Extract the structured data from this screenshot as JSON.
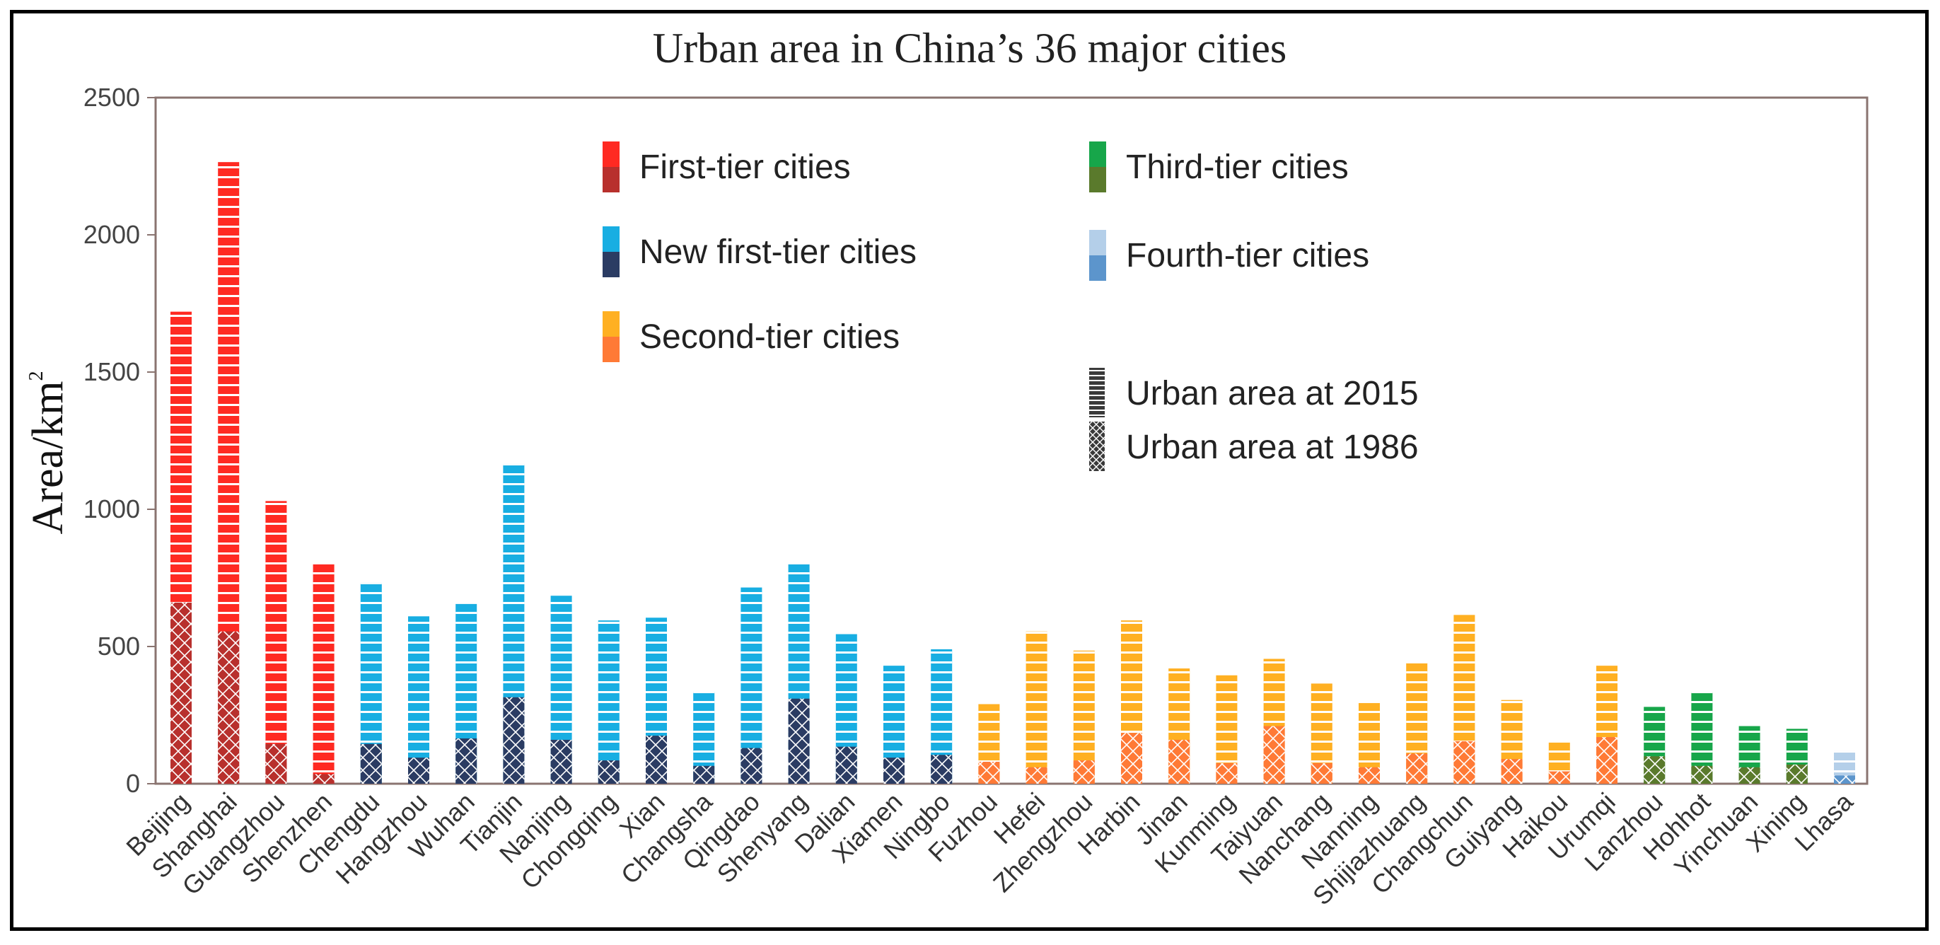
{
  "chart_data": {
    "type": "bar",
    "title": "Urban area in China’s 36 major cities",
    "ylabel": "Area/km",
    "ylabel_superscript": "2",
    "xlabel": "",
    "ylim": [
      0,
      2500
    ],
    "yticks": [
      "0",
      "500",
      "1000",
      "1500",
      "2000",
      "2500"
    ],
    "grid": false,
    "categories": [
      "Beijing",
      "Shanghai",
      "Guangzhou",
      "Shenzhen",
      "Chengdu",
      "Hangzhou",
      "Wuhan",
      "Tianjin",
      "Nanjing",
      "Chongqing",
      "Xian",
      "Changsha",
      "Qingdao",
      "Shenyang",
      "Dalian",
      "Xiamen",
      "Ningbo",
      "Fuzhou",
      "Hefei",
      "Zhengzhou",
      "Harbin",
      "Jinan",
      "Kunming",
      "Taiyuan",
      "Nanchang",
      "Nanning",
      "Shijiazhuang",
      "Changchun",
      "Guiyang",
      "Haikou",
      "Urumqi",
      "Lanzhou",
      "Hohhot",
      "Yinchuan",
      "Xining",
      "Lhasa"
    ],
    "tiers": [
      "first",
      "first",
      "first",
      "first",
      "newfirst",
      "newfirst",
      "newfirst",
      "newfirst",
      "newfirst",
      "newfirst",
      "newfirst",
      "newfirst",
      "newfirst",
      "newfirst",
      "newfirst",
      "newfirst",
      "newfirst",
      "second",
      "second",
      "second",
      "second",
      "second",
      "second",
      "second",
      "second",
      "second",
      "second",
      "second",
      "second",
      "second",
      "second",
      "third",
      "third",
      "third",
      "third",
      "fourth"
    ],
    "series": [
      {
        "name": "Urban area at 2015",
        "values": [
          1720,
          2265,
          1030,
          800,
          730,
          610,
          655,
          1165,
          685,
          595,
          605,
          335,
          715,
          800,
          545,
          430,
          490,
          290,
          555,
          485,
          595,
          420,
          395,
          455,
          365,
          295,
          440,
          615,
          305,
          150,
          430,
          280,
          335,
          210,
          200,
          120
        ]
      },
      {
        "name": "Urban area at 1986",
        "values": [
          660,
          555,
          145,
          35,
          145,
          95,
          165,
          315,
          160,
          85,
          175,
          65,
          130,
          310,
          135,
          95,
          105,
          80,
          60,
          85,
          185,
          160,
          75,
          210,
          75,
          60,
          110,
          155,
          90,
          45,
          170,
          100,
          65,
          60,
          70,
          30
        ]
      }
    ],
    "tier_colors": {
      "first": {
        "2015": "#ff2a22",
        "1986": "#b8302d"
      },
      "newfirst": {
        "2015": "#18aee2",
        "1986": "#2b3c63"
      },
      "second": {
        "2015": "#ffb022",
        "1986": "#ff7a36"
      },
      "third": {
        "2015": "#17a64a",
        "1986": "#5a7a2c"
      },
      "fourth": {
        "2015": "#b4cfe9",
        "1986": "#5c95cc"
      }
    },
    "legend": {
      "tiers": [
        {
          "key": "first",
          "label": "First-tier cities"
        },
        {
          "key": "newfirst",
          "label": "New first-tier cities"
        },
        {
          "key": "second",
          "label": "Second-tier cities"
        },
        {
          "key": "third",
          "label": "Third-tier  cities"
        },
        {
          "key": "fourth",
          "label": "Fourth-tier cities"
        }
      ],
      "patterns": [
        {
          "key": "2015",
          "label": "Urban area at 2015"
        },
        {
          "key": "1986",
          "label": "Urban area at 1986"
        }
      ]
    }
  }
}
